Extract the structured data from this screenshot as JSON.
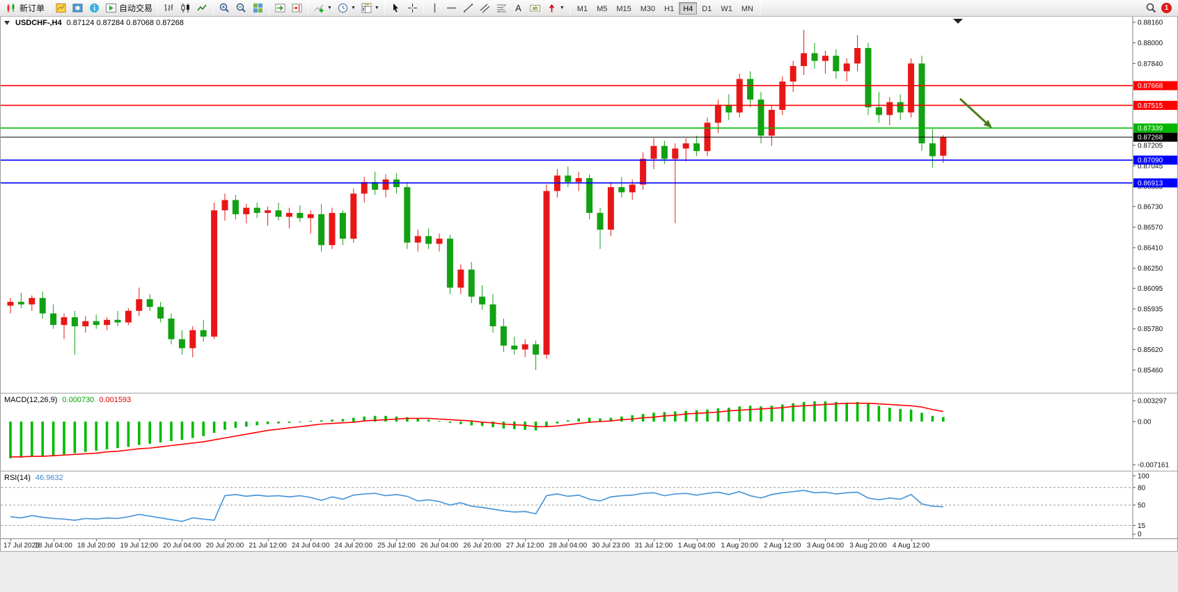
{
  "toolbar": {
    "groups": [
      {
        "items": [
          {
            "icon": "new-order-icon",
            "label": "新订单"
          }
        ]
      },
      {
        "items": [
          {
            "icon": "market-watch-icon"
          },
          {
            "icon": "navigator-icon"
          },
          {
            "icon": "data-window-icon"
          },
          {
            "icon": "autotrading-icon",
            "label": "自动交易"
          }
        ]
      },
      {
        "items": [
          {
            "icon": "bar-chart-icon"
          },
          {
            "icon": "candlestick-chart-icon"
          },
          {
            "icon": "line-chart-icon"
          }
        ]
      },
      {
        "items": [
          {
            "icon": "zoom-in-icon"
          },
          {
            "icon": "zoom-out-icon"
          },
          {
            "icon": "tile-windows-icon"
          }
        ]
      },
      {
        "items": [
          {
            "icon": "auto-scroll-icon"
          },
          {
            "icon": "chart-shift-icon"
          }
        ]
      },
      {
        "items": [
          {
            "icon": "indicators-icon",
            "caret": true
          },
          {
            "icon": "periods-icon",
            "caret": true
          },
          {
            "icon": "templates-icon",
            "caret": true
          }
        ]
      },
      {
        "items": [
          {
            "icon": "cursor-icon"
          },
          {
            "icon": "crosshair-icon"
          }
        ]
      },
      {
        "items": [
          {
            "icon": "vertical-line-icon"
          },
          {
            "icon": "horizontal-line-icon"
          },
          {
            "icon": "trendline-icon"
          },
          {
            "icon": "channel-icon"
          },
          {
            "icon": "fibonacci-icon"
          },
          {
            "icon": "text-icon"
          },
          {
            "icon": "text-label-icon"
          },
          {
            "icon": "arrows-icon",
            "caret": true
          }
        ]
      }
    ],
    "timeframes": [
      {
        "label": "M1"
      },
      {
        "label": "M5"
      },
      {
        "label": "M15"
      },
      {
        "label": "M30"
      },
      {
        "label": "H1"
      },
      {
        "label": "H4",
        "active": true
      },
      {
        "label": "D1"
      },
      {
        "label": "W1"
      },
      {
        "label": "MN"
      }
    ],
    "right": {
      "search_icon": "search-icon",
      "notification_count": "1"
    }
  },
  "chart": {
    "title_symbol": "USDCHF-,H4",
    "title_values": "0.87124 0.87284 0.87068 0.87268"
  },
  "indicators": {
    "macd": {
      "name": "MACD(12,26,9)",
      "value_main": "0.000730",
      "value_signal": "0.001593"
    },
    "rsi": {
      "name": "RSI(14)",
      "value": "46.9632"
    }
  },
  "colors": {
    "bull_candle": "#e81717",
    "bear_candle": "#12a112",
    "hline_red": "#ff0000",
    "hline_green": "#00b800",
    "hline_blue": "#0000ff",
    "price_marker": "#000000",
    "macd_hist": "#00bb00",
    "macd_signal": "#ff0000",
    "rsi_line": "#4a96d8",
    "arrow": "#4e7a1f",
    "badge_red": "#e21919"
  },
  "chart_data": {
    "type": "candlestick",
    "symbol": "USDCHF-",
    "timeframe": "H4",
    "last": {
      "open": 0.87124,
      "high": 0.87284,
      "low": 0.87068,
      "close": 0.87268
    },
    "price_axis": {
      "min": 0.8546,
      "max": 0.8816,
      "ticks": [
        "0.88160",
        "0.88000",
        "0.87840",
        "0.87205",
        "0.87045",
        "0.86885",
        "0.86730",
        "0.86570",
        "0.86410",
        "0.86250",
        "0.86095",
        "0.85935",
        "0.85780",
        "0.85620",
        "0.85460"
      ]
    },
    "hlines": [
      {
        "price": 0.87668,
        "label": "0.87668",
        "color": "#ff0000",
        "width": 1.6
      },
      {
        "price": 0.87515,
        "label": "0.87515",
        "color": "#ff0000",
        "width": 1.6
      },
      {
        "price": 0.87339,
        "label": "0.87339",
        "color": "#00b800",
        "width": 1.6
      },
      {
        "price": 0.87268,
        "label": "0.87268",
        "color": "#000000",
        "width": 1
      },
      {
        "price": 0.8709,
        "label": "0.87090",
        "color": "#0000ff",
        "width": 1.6
      },
      {
        "price": 0.86913,
        "label": "0.86913",
        "color": "#0000ff",
        "width": 1.6
      }
    ],
    "x_labels": [
      "17 Jul 2023",
      "18 Jul 04:00",
      "18 Jul 20:00",
      "19 Jul 12:00",
      "20 Jul 04:00",
      "20 Jul 20:00",
      "21 Jul 12:00",
      "24 Jul 04:00",
      "24 Jul 20:00",
      "25 Jul 12:00",
      "26 Jul 04:00",
      "26 Jul 20:00",
      "27 Jul 12:00",
      "28 Jul 04:00",
      "30 Jul 23:00",
      "31 Jul 12:00",
      "1 Aug 04:00",
      "1 Aug 20:00",
      "2 Aug 12:00",
      "3 Aug 04:00",
      "3 Aug 20:00",
      "4 Aug 12:00"
    ],
    "candles": [
      [
        0.8596,
        0.8602,
        0.859,
        0.8599
      ],
      [
        0.8599,
        0.8606,
        0.8594,
        0.8597
      ],
      [
        0.8597,
        0.8604,
        0.8592,
        0.8602
      ],
      [
        0.8602,
        0.8607,
        0.8586,
        0.859
      ],
      [
        0.859,
        0.8597,
        0.8578,
        0.8581
      ],
      [
        0.8581,
        0.859,
        0.857,
        0.8587
      ],
      [
        0.8587,
        0.8592,
        0.8558,
        0.858
      ],
      [
        0.858,
        0.8588,
        0.8575,
        0.8584
      ],
      [
        0.8584,
        0.8589,
        0.8578,
        0.8581
      ],
      [
        0.8581,
        0.8587,
        0.8577,
        0.8585
      ],
      [
        0.8585,
        0.8592,
        0.858,
        0.8583
      ],
      [
        0.8583,
        0.8594,
        0.8581,
        0.8592
      ],
      [
        0.8592,
        0.861,
        0.8588,
        0.8601
      ],
      [
        0.8601,
        0.8605,
        0.8592,
        0.8595
      ],
      [
        0.8595,
        0.8599,
        0.8583,
        0.8586
      ],
      [
        0.8586,
        0.859,
        0.8566,
        0.857
      ],
      [
        0.857,
        0.8577,
        0.8558,
        0.8563
      ],
      [
        0.8563,
        0.858,
        0.8556,
        0.8577
      ],
      [
        0.8577,
        0.8585,
        0.8568,
        0.8572
      ],
      [
        0.8572,
        0.8676,
        0.857,
        0.867
      ],
      [
        0.867,
        0.8683,
        0.8662,
        0.8678
      ],
      [
        0.8678,
        0.8682,
        0.8663,
        0.8667
      ],
      [
        0.8667,
        0.8675,
        0.866,
        0.8672
      ],
      [
        0.8672,
        0.8676,
        0.8664,
        0.8668
      ],
      [
        0.8668,
        0.8673,
        0.8658,
        0.867
      ],
      [
        0.867,
        0.8676,
        0.8662,
        0.8665
      ],
      [
        0.8665,
        0.8672,
        0.8656,
        0.8668
      ],
      [
        0.8668,
        0.8674,
        0.8661,
        0.8664
      ],
      [
        0.8664,
        0.867,
        0.8652,
        0.8667
      ],
      [
        0.8667,
        0.8675,
        0.8638,
        0.8643
      ],
      [
        0.8643,
        0.8672,
        0.864,
        0.8668
      ],
      [
        0.8668,
        0.867,
        0.8643,
        0.8648
      ],
      [
        0.8648,
        0.8687,
        0.8645,
        0.8683
      ],
      [
        0.8683,
        0.8696,
        0.8676,
        0.8692
      ],
      [
        0.8692,
        0.87,
        0.8682,
        0.8686
      ],
      [
        0.8686,
        0.8698,
        0.868,
        0.8694
      ],
      [
        0.8694,
        0.8699,
        0.8683,
        0.8688
      ],
      [
        0.8688,
        0.8692,
        0.864,
        0.8645
      ],
      [
        0.8645,
        0.8655,
        0.8638,
        0.865
      ],
      [
        0.865,
        0.8656,
        0.864,
        0.8644
      ],
      [
        0.8644,
        0.8652,
        0.8638,
        0.8648
      ],
      [
        0.8648,
        0.8651,
        0.8605,
        0.861
      ],
      [
        0.861,
        0.8628,
        0.8605,
        0.8624
      ],
      [
        0.8624,
        0.863,
        0.8598,
        0.8603
      ],
      [
        0.8603,
        0.8612,
        0.8593,
        0.8597
      ],
      [
        0.8597,
        0.8605,
        0.8575,
        0.858
      ],
      [
        0.858,
        0.8586,
        0.856,
        0.8565
      ],
      [
        0.8565,
        0.8572,
        0.8558,
        0.8562
      ],
      [
        0.8562,
        0.857,
        0.8556,
        0.8566
      ],
      [
        0.8566,
        0.8569,
        0.8546,
        0.8558
      ],
      [
        0.8558,
        0.869,
        0.8555,
        0.8685
      ],
      [
        0.8685,
        0.8702,
        0.868,
        0.8697
      ],
      [
        0.8697,
        0.8704,
        0.8688,
        0.8692
      ],
      [
        0.8692,
        0.87,
        0.8685,
        0.8695
      ],
      [
        0.8695,
        0.8698,
        0.8663,
        0.8668
      ],
      [
        0.8668,
        0.8672,
        0.864,
        0.8655
      ],
      [
        0.8655,
        0.8692,
        0.865,
        0.8688
      ],
      [
        0.8688,
        0.8696,
        0.868,
        0.8684
      ],
      [
        0.8684,
        0.8694,
        0.8678,
        0.869
      ],
      [
        0.869,
        0.8715,
        0.8686,
        0.871
      ],
      [
        0.871,
        0.8726,
        0.8702,
        0.872
      ],
      [
        0.872,
        0.8724,
        0.8706,
        0.871
      ],
      [
        0.871,
        0.8722,
        0.866,
        0.8718
      ],
      [
        0.8718,
        0.8726,
        0.8708,
        0.8722
      ],
      [
        0.8722,
        0.8728,
        0.8712,
        0.8716
      ],
      [
        0.8716,
        0.8742,
        0.8712,
        0.8738
      ],
      [
        0.8738,
        0.8756,
        0.873,
        0.8752
      ],
      [
        0.8752,
        0.876,
        0.874,
        0.8746
      ],
      [
        0.8746,
        0.8776,
        0.8742,
        0.8772
      ],
      [
        0.8772,
        0.8778,
        0.875,
        0.8756
      ],
      [
        0.8756,
        0.8762,
        0.8722,
        0.8728
      ],
      [
        0.8728,
        0.8752,
        0.872,
        0.8748
      ],
      [
        0.8748,
        0.8774,
        0.8744,
        0.877
      ],
      [
        0.877,
        0.8786,
        0.8762,
        0.8782
      ],
      [
        0.8782,
        0.881,
        0.8775,
        0.8792
      ],
      [
        0.8792,
        0.88,
        0.878,
        0.8786
      ],
      [
        0.8786,
        0.8794,
        0.8776,
        0.879
      ],
      [
        0.879,
        0.8795,
        0.8772,
        0.8778
      ],
      [
        0.8778,
        0.8788,
        0.877,
        0.8784
      ],
      [
        0.8784,
        0.8806,
        0.8778,
        0.8796
      ],
      [
        0.8796,
        0.88,
        0.8744,
        0.875
      ],
      [
        0.875,
        0.8762,
        0.8738,
        0.8744
      ],
      [
        0.8744,
        0.8758,
        0.8736,
        0.8754
      ],
      [
        0.8754,
        0.876,
        0.874,
        0.8746
      ],
      [
        0.8746,
        0.8788,
        0.8742,
        0.8784
      ],
      [
        0.8784,
        0.879,
        0.8716,
        0.8722
      ],
      [
        0.8722,
        0.8733,
        0.8703,
        0.8712
      ],
      [
        0.87124,
        0.87284,
        0.87068,
        0.87268
      ]
    ],
    "macd": {
      "params": "12,26,9",
      "axis_ticks": [
        "0.003297",
        "0.00",
        "-0.007161"
      ],
      "hist": [
        -0.0058,
        -0.0057,
        -0.0056,
        -0.0055,
        -0.0054,
        -0.0052,
        -0.005,
        -0.0048,
        -0.0046,
        -0.0044,
        -0.0042,
        -0.004,
        -0.0037,
        -0.0035,
        -0.0033,
        -0.0031,
        -0.0029,
        -0.0026,
        -0.0023,
        -0.0018,
        -0.0013,
        -0.001,
        -0.0008,
        -0.0006,
        -0.0004,
        -0.0003,
        -0.0002,
        -0.0001,
        0.0001,
        0.0002,
        0.0003,
        0.0004,
        0.0006,
        0.0008,
        0.0009,
        0.0009,
        0.0008,
        0.0007,
        0.0005,
        0.0003,
        0.0001,
        -0.0002,
        -0.0004,
        -0.0006,
        -0.0007,
        -0.0009,
        -0.0011,
        -0.0012,
        -0.0013,
        -0.0014,
        -0.0008,
        -0.0003,
        0.0002,
        0.0005,
        0.0006,
        0.0005,
        0.0006,
        0.0008,
        0.001,
        0.0012,
        0.0014,
        0.0015,
        0.0016,
        0.0017,
        0.0018,
        0.0019,
        0.0021,
        0.0022,
        0.0024,
        0.0025,
        0.0024,
        0.0025,
        0.0027,
        0.0029,
        0.0031,
        0.0032,
        0.0032,
        0.0031,
        0.003,
        0.0031,
        0.0028,
        0.0025,
        0.0022,
        0.002,
        0.0019,
        0.0014,
        0.0009,
        0.00073
      ],
      "signal": [
        -0.0056,
        -0.0056,
        -0.0055,
        -0.0055,
        -0.0054,
        -0.0053,
        -0.0052,
        -0.0051,
        -0.005,
        -0.0048,
        -0.0047,
        -0.0045,
        -0.0043,
        -0.0042,
        -0.004,
        -0.0038,
        -0.0036,
        -0.0034,
        -0.0032,
        -0.0029,
        -0.0026,
        -0.0023,
        -0.002,
        -0.0017,
        -0.0014,
        -0.0012,
        -0.001,
        -0.0008,
        -0.0006,
        -0.0004,
        -0.0003,
        -0.0002,
        -0.0001,
        0.0001,
        0.0002,
        0.0003,
        0.0004,
        0.0005,
        0.0005,
        0.0005,
        0.0004,
        0.0003,
        0.0002,
        0.0001,
        -0.0001,
        -0.0002,
        -0.0004,
        -0.0005,
        -0.0006,
        -0.0008,
        -0.0008,
        -0.0007,
        -0.0005,
        -0.0003,
        -0.0001,
        0.0,
        0.0001,
        0.0003,
        0.0004,
        0.0006,
        0.0007,
        0.0009,
        0.001,
        0.0012,
        0.0013,
        0.0014,
        0.0015,
        0.0017,
        0.0018,
        0.0019,
        0.002,
        0.0021,
        0.0022,
        0.0024,
        0.0025,
        0.0026,
        0.0027,
        0.0028,
        0.0029,
        0.0029,
        0.0029,
        0.0028,
        0.0027,
        0.0026,
        0.0025,
        0.0023,
        0.0019,
        0.001593
      ]
    },
    "rsi": {
      "period": 14,
      "levels": [
        80,
        50,
        15
      ],
      "axis_ticks": [
        "100",
        "80",
        "50",
        "15",
        "0"
      ],
      "values": [
        30,
        28,
        32,
        29,
        27,
        26,
        24,
        27,
        26,
        28,
        27,
        30,
        34,
        31,
        28,
        25,
        22,
        28,
        26,
        24,
        66,
        68,
        65,
        67,
        65,
        66,
        64,
        66,
        63,
        58,
        64,
        60,
        67,
        69,
        70,
        66,
        68,
        65,
        57,
        59,
        56,
        50,
        54,
        48,
        46,
        43,
        40,
        38,
        39,
        35,
        66,
        69,
        65,
        67,
        60,
        57,
        64,
        66,
        67,
        70,
        71,
        66,
        69,
        70,
        67,
        70,
        72,
        68,
        73,
        66,
        62,
        68,
        71,
        73,
        75,
        71,
        72,
        69,
        71,
        72,
        62,
        59,
        62,
        60,
        68,
        52,
        48,
        46.96
      ],
      "current": 46.9632
    },
    "annotations": [
      {
        "type": "arrow",
        "direction": "down-right",
        "color": "#4e7a1f"
      }
    ]
  }
}
